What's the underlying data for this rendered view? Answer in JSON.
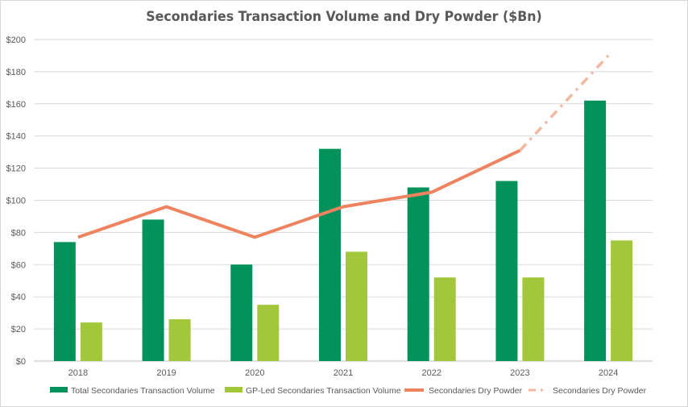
{
  "chart_data": {
    "type": "bar",
    "title": "Secondaries Transaction Volume and Dry Powder ($Bn)",
    "categories": [
      "2018",
      "2019",
      "2020",
      "2021",
      "2022",
      "2023",
      "2024"
    ],
    "ylim": [
      0,
      200
    ],
    "yticks": [
      "$0",
      "$20",
      "$40",
      "$60",
      "$80",
      "$100",
      "$120",
      "$140",
      "$160",
      "$180",
      "$200"
    ],
    "grid": true,
    "legend_position": "bottom",
    "series": [
      {
        "name": "Total Secondaries Transaction Volume",
        "type": "bar",
        "color": "#00925a",
        "values": [
          74,
          88,
          60,
          132,
          108,
          112,
          162
        ]
      },
      {
        "name": "GP-Led Secondaries Transaction Volume",
        "type": "bar",
        "color": "#a2c73b",
        "values": [
          24,
          26,
          35,
          68,
          52,
          52,
          75
        ]
      },
      {
        "name": "Secondaries Dry Powder",
        "type": "line",
        "style": "solid",
        "color": "#ee8360",
        "values": [
          77,
          96,
          77,
          96,
          105,
          131,
          null
        ]
      },
      {
        "name": "Secondaries Dry Powder",
        "type": "line",
        "style": "dashed",
        "color": "#f3b8a0",
        "values": [
          null,
          null,
          null,
          null,
          null,
          131,
          190
        ]
      }
    ]
  }
}
